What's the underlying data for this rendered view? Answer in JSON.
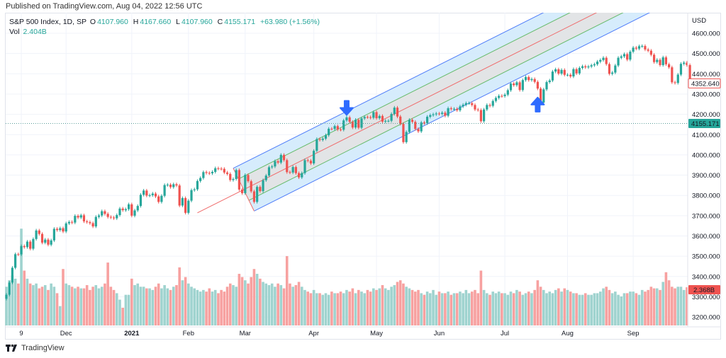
{
  "header": {
    "published": "Published on TradingView.com, Aug 04, 2022 12:56 UTC"
  },
  "legend": {
    "symbol": "S&P 500 Index, 1D, SP",
    "o_label": "O",
    "o": "4107.960",
    "h_label": "H",
    "h": "4167.660",
    "l_label": "L",
    "l": "4107.960",
    "c_label": "C",
    "c": "4155.171",
    "change": "+63.980 (+1.56%)",
    "vol_label": "Vol",
    "vol": "2.404B"
  },
  "footer": {
    "brand": "TradingView"
  },
  "colors": {
    "up": "#26a69a",
    "down": "#ef5350",
    "vol_up": "#9fd3cf",
    "vol_down": "#f7a1a0",
    "channel_outer": "#4f7df9",
    "channel_fill": "#cfe9fb",
    "inner_fill": "#e3e3e3",
    "median": "#ef6b6b",
    "inner_lines": "#66bb6a",
    "arrows": "#2f6bff"
  },
  "chart_data": {
    "type": "candlestick",
    "currency_label": "USD",
    "y_ticks": [
      "4600.000",
      "4500.000",
      "4400.000",
      "4300.000",
      "4200.000",
      "4100.000",
      "4000.000",
      "3900.000",
      "3800.000",
      "3700.000",
      "3600.000",
      "3500.000",
      "3400.000",
      "3300.000",
      "3200.000"
    ],
    "y_tick_values": [
      4600,
      4500,
      4400,
      4300,
      4200,
      4100,
      4000,
      3900,
      3800,
      3700,
      3600,
      3500,
      3400,
      3300,
      3200
    ],
    "x_ticks": [
      {
        "label": "9",
        "index": 5,
        "bold": false
      },
      {
        "label": "Dec",
        "index": 20,
        "bold": false
      },
      {
        "label": "2021",
        "index": 42,
        "bold": true
      },
      {
        "label": "Feb",
        "index": 61,
        "bold": false
      },
      {
        "label": "Mar",
        "index": 80,
        "bold": false
      },
      {
        "label": "Apr",
        "index": 103,
        "bold": false
      },
      {
        "label": "May",
        "index": 124,
        "bold": false
      },
      {
        "label": "Jun",
        "index": 145,
        "bold": false
      },
      {
        "label": "Jul",
        "index": 167,
        "bold": false
      },
      {
        "label": "Aug",
        "index": 188,
        "bold": false
      },
      {
        "label": "Sep",
        "index": 210,
        "bold": false
      }
    ],
    "close": [
      3310,
      3370,
      3443,
      3510,
      3509,
      3550,
      3545,
      3572,
      3537,
      3585,
      3627,
      3610,
      3567,
      3582,
      3557,
      3578,
      3635,
      3629,
      3638,
      3622,
      3662,
      3669,
      3666,
      3699,
      3691,
      3702,
      3672,
      3668,
      3663,
      3647,
      3694,
      3701,
      3722,
      3709,
      3694,
      3691,
      3687,
      3703,
      3735,
      3727,
      3732,
      3756,
      3700,
      3726,
      3748,
      3803,
      3824,
      3799,
      3801,
      3809,
      3795,
      3768,
      3798,
      3851,
      3853,
      3841,
      3855,
      3849,
      3750,
      3787,
      3714,
      3774,
      3826,
      3830,
      3871,
      3886,
      3915,
      3911,
      3909,
      3916,
      3934,
      3932,
      3931,
      3913,
      3906,
      3876,
      3881,
      3925,
      3829,
      3811,
      3901,
      3870,
      3820,
      3768,
      3842,
      3821,
      3875,
      3898,
      3939,
      3943,
      3969,
      3962,
      4000,
      3974,
      3915,
      3913,
      3940,
      3910,
      3889,
      3910,
      3974,
      3971,
      3958,
      4020,
      4078,
      4074,
      4080,
      4097,
      4129,
      4128,
      4142,
      4125,
      4124,
      4170,
      4185,
      4163,
      4135,
      4173,
      4134,
      4180,
      4187,
      4186,
      4183,
      4211,
      4181,
      4192,
      4164,
      4168,
      4168,
      4202,
      4233,
      4189,
      4153,
      4063,
      4113,
      4173,
      4163,
      4128,
      4116,
      4160,
      4156,
      4188,
      4196,
      4200,
      4204,
      4202,
      4208,
      4193,
      4230,
      4226,
      4227,
      4220,
      4239,
      4247,
      4255,
      4255,
      4246,
      4224,
      4221,
      4166,
      4224,
      4246,
      4242,
      4266,
      4281,
      4291,
      4290,
      4297,
      4319,
      4352,
      4344,
      4358,
      4320,
      4369,
      4384,
      4369,
      4374,
      4360,
      4327,
      4258,
      4323,
      4359,
      4367,
      4411,
      4422,
      4401,
      4419,
      4395,
      4395,
      4387,
      4423,
      4402,
      4429,
      4437,
      4432,
      4436,
      4442,
      4447,
      4460,
      4468,
      4479,
      4448,
      4400,
      4406,
      4441,
      4479,
      4486,
      4497,
      4470,
      4509,
      4529,
      4524,
      4536,
      4537,
      4520,
      4514,
      4494,
      4458,
      4469,
      4443,
      4481,
      4447,
      4432,
      4358,
      4355,
      4396,
      4449,
      4455,
      4443,
      4353
    ],
    "volume_billions": [
      2.4,
      2.8,
      3.1,
      2.9,
      2.6,
      6.0,
      3.4,
      2.9,
      2.6,
      2.5,
      2.6,
      2.3,
      2.4,
      2.5,
      2.2,
      2.6,
      2.4,
      2.0,
      1.2,
      3.5,
      2.6,
      2.5,
      2.4,
      2.3,
      2.4,
      2.3,
      2.3,
      2.5,
      2.2,
      2.4,
      2.5,
      2.3,
      2.4,
      2.6,
      3.9,
      2.4,
      2.2,
      2.0,
      1.6,
      1.1,
      1.9,
      1.9,
      2.9,
      2.5,
      2.6,
      2.4,
      2.4,
      2.3,
      2.3,
      2.2,
      2.4,
      2.6,
      2.3,
      2.5,
      2.3,
      2.2,
      2.4,
      2.5,
      3.6,
      2.8,
      3.0,
      2.6,
      2.4,
      2.3,
      2.2,
      2.1,
      2.2,
      2.1,
      2.3,
      2.1,
      2.2,
      2.0,
      2.2,
      2.1,
      2.4,
      2.6,
      2.5,
      2.4,
      3.2,
      3.0,
      2.8,
      2.6,
      3.0,
      3.5,
      3.2,
      2.9,
      2.7,
      2.6,
      2.5,
      2.6,
      2.4,
      2.6,
      2.5,
      2.3,
      4.3,
      2.6,
      2.4,
      2.5,
      2.7,
      2.4,
      2.2,
      2.1,
      2.0,
      2.2,
      2.0,
      2.0,
      1.9,
      2.0,
      1.9,
      2.1,
      2.0,
      2.0,
      2.1,
      2.0,
      2.2,
      2.1,
      2.3,
      2.0,
      2.2,
      2.1,
      2.0,
      2.2,
      2.1,
      2.3,
      2.2,
      2.3,
      2.5,
      2.3,
      2.2,
      2.4,
      2.5,
      2.7,
      2.8,
      2.6,
      2.4,
      2.3,
      2.2,
      2.1,
      2.2,
      2.0,
      1.9,
      2.1,
      2.0,
      2.2,
      1.9,
      2.1,
      2.0,
      2.0,
      2.1,
      1.9,
      2.0,
      2.0,
      2.1,
      2.0,
      2.2,
      2.0,
      2.1,
      2.2,
      2.0,
      3.4,
      2.2,
      2.0,
      1.9,
      2.1,
      2.0,
      2.1,
      2.0,
      2.0,
      1.9,
      2.1,
      2.0,
      2.2,
      2.1,
      1.9,
      2.0,
      2.1,
      2.0,
      2.2,
      2.8,
      2.4,
      2.2,
      2.0,
      2.1,
      2.0,
      2.2,
      2.3,
      2.1,
      2.3,
      2.2,
      2.1,
      2.0,
      2.0,
      1.9,
      1.9,
      2.0,
      1.9,
      1.9,
      2.0,
      2.0,
      2.1,
      2.3,
      2.4,
      2.2,
      2.0,
      2.1,
      1.9,
      1.8,
      2.0,
      2.0,
      2.1,
      2.1,
      2.0,
      1.9,
      2.2,
      2.1,
      2.2,
      2.4,
      2.3,
      2.3,
      2.2,
      2.7,
      3.3,
      2.8,
      2.4,
      2.3,
      2.4,
      2.4,
      2.2,
      2.368
    ],
    "last_price_label": "4352.640",
    "crosshair_price_label": "4155.171",
    "crosshair_price": 4155.171,
    "volume_label": "2.368B",
    "pitchfork": {
      "type": "Andrews pitchfork",
      "anchors": [
        {
          "index": 64,
          "price": 3714
        },
        {
          "index": 76,
          "price": 3934
        },
        {
          "index": 83,
          "price": 3723
        }
      ]
    },
    "annotations": [
      {
        "type": "arrow-down",
        "index": 114,
        "price": 4190
      },
      {
        "type": "arrow-up",
        "index": 178,
        "price": 4290
      }
    ]
  }
}
